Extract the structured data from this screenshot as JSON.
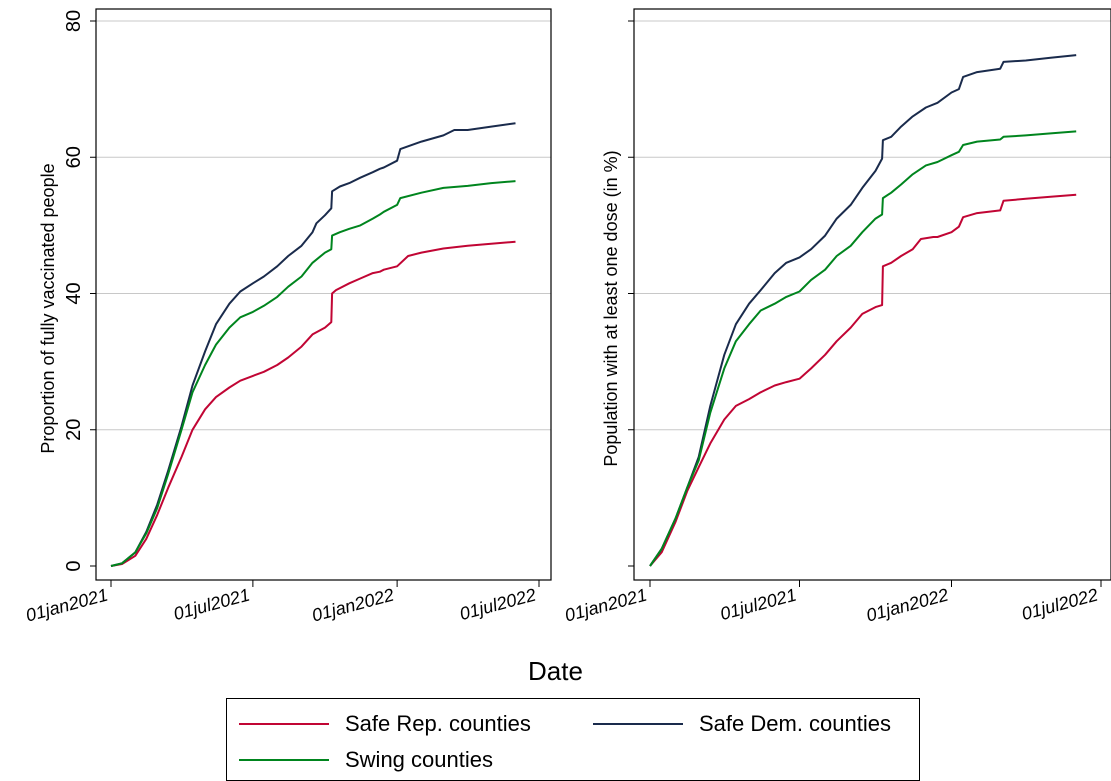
{
  "colors": {
    "safe_rep": "#c10534",
    "safe_dem": "#1a2b4c",
    "swing": "#00851e",
    "grid": "#c8c8c8",
    "axis": "#000000"
  },
  "xlabel": "Date",
  "legend": {
    "placement": "bottom",
    "items": [
      {
        "label": "Safe Rep. counties",
        "series": "safe_rep"
      },
      {
        "label": "Safe Dem. counties",
        "series": "safe_dem"
      },
      {
        "label": "Swing counties",
        "series": "swing"
      }
    ]
  },
  "chart_data": [
    {
      "type": "line",
      "ylabel": "Proportion of fully vaccinated people",
      "xlabel": "Date",
      "xlim": [
        "2021-01-01",
        "2022-07-01"
      ],
      "ylim": [
        0,
        80
      ],
      "x_ticks": [
        "01jan2021",
        "01jul2021",
        "01jan2022",
        "01jul2022"
      ],
      "y_ticks": [
        "0",
        "20",
        "40",
        "60",
        "80"
      ],
      "grid": true,
      "series": [
        {
          "name": "Safe Rep. counties",
          "key": "safe_rep",
          "points": [
            [
              "2021-01-01",
              0
            ],
            [
              "2021-01-15",
              0.3
            ],
            [
              "2021-02-01",
              1.5
            ],
            [
              "2021-02-15",
              4
            ],
            [
              "2021-03-01",
              7.5
            ],
            [
              "2021-03-15",
              11.5
            ],
            [
              "2021-04-01",
              16
            ],
            [
              "2021-04-15",
              20
            ],
            [
              "2021-05-01",
              23
            ],
            [
              "2021-05-15",
              24.8
            ],
            [
              "2021-06-01",
              26.2
            ],
            [
              "2021-06-15",
              27.2
            ],
            [
              "2021-07-01",
              27.9
            ],
            [
              "2021-07-15",
              28.5
            ],
            [
              "2021-08-01",
              29.5
            ],
            [
              "2021-08-15",
              30.6
            ],
            [
              "2021-09-01",
              32.2
            ],
            [
              "2021-09-15",
              34
            ],
            [
              "2021-10-01",
              35
            ],
            [
              "2021-10-09",
              35.8
            ],
            [
              "2021-10-10",
              40
            ],
            [
              "2021-10-15",
              40.5
            ],
            [
              "2021-11-01",
              41.5
            ],
            [
              "2021-11-15",
              42.2
            ],
            [
              "2021-12-01",
              43
            ],
            [
              "2021-12-10",
              43.2
            ],
            [
              "2021-12-15",
              43.5
            ],
            [
              "2022-01-01",
              44
            ],
            [
              "2022-01-15",
              45.5
            ],
            [
              "2022-02-01",
              46
            ],
            [
              "2022-03-01",
              46.6
            ],
            [
              "2022-04-01",
              47
            ],
            [
              "2022-05-01",
              47.3
            ],
            [
              "2022-06-01",
              47.6
            ]
          ]
        },
        {
          "name": "Safe Dem. counties",
          "key": "safe_dem",
          "points": [
            [
              "2021-01-01",
              0
            ],
            [
              "2021-01-15",
              0.4
            ],
            [
              "2021-02-01",
              2
            ],
            [
              "2021-02-15",
              5
            ],
            [
              "2021-03-01",
              9
            ],
            [
              "2021-03-15",
              14
            ],
            [
              "2021-04-01",
              20.5
            ],
            [
              "2021-04-15",
              26.5
            ],
            [
              "2021-05-01",
              31.5
            ],
            [
              "2021-05-15",
              35.5
            ],
            [
              "2021-06-01",
              38.5
            ],
            [
              "2021-06-15",
              40.3
            ],
            [
              "2021-07-01",
              41.5
            ],
            [
              "2021-07-15",
              42.5
            ],
            [
              "2021-08-01",
              44
            ],
            [
              "2021-08-15",
              45.5
            ],
            [
              "2021-09-01",
              47
            ],
            [
              "2021-09-15",
              49
            ],
            [
              "2021-09-20",
              50.3
            ],
            [
              "2021-10-01",
              51.5
            ],
            [
              "2021-10-09",
              52.5
            ],
            [
              "2021-10-10",
              55
            ],
            [
              "2021-10-20",
              55.7
            ],
            [
              "2021-11-01",
              56.2
            ],
            [
              "2021-11-15",
              57
            ],
            [
              "2021-12-01",
              57.8
            ],
            [
              "2021-12-10",
              58.3
            ],
            [
              "2021-12-15",
              58.5
            ],
            [
              "2022-01-01",
              59.5
            ],
            [
              "2022-01-05",
              61.2
            ],
            [
              "2022-02-01",
              62.3
            ],
            [
              "2022-03-01",
              63.2
            ],
            [
              "2022-03-15",
              64
            ],
            [
              "2022-04-01",
              64
            ],
            [
              "2022-05-01",
              64.5
            ],
            [
              "2022-06-01",
              65
            ]
          ]
        },
        {
          "name": "Swing counties",
          "key": "swing",
          "points": [
            [
              "2021-01-01",
              0
            ],
            [
              "2021-01-15",
              0.4
            ],
            [
              "2021-02-01",
              2
            ],
            [
              "2021-02-15",
              4.8
            ],
            [
              "2021-03-01",
              8.5
            ],
            [
              "2021-03-15",
              13.5
            ],
            [
              "2021-04-01",
              20
            ],
            [
              "2021-04-15",
              25.5
            ],
            [
              "2021-05-01",
              29.5
            ],
            [
              "2021-05-15",
              32.5
            ],
            [
              "2021-06-01",
              35
            ],
            [
              "2021-06-15",
              36.5
            ],
            [
              "2021-07-01",
              37.3
            ],
            [
              "2021-07-15",
              38.2
            ],
            [
              "2021-08-01",
              39.5
            ],
            [
              "2021-08-15",
              41
            ],
            [
              "2021-09-01",
              42.5
            ],
            [
              "2021-09-15",
              44.5
            ],
            [
              "2021-10-01",
              46
            ],
            [
              "2021-10-09",
              46.5
            ],
            [
              "2021-10-10",
              48.5
            ],
            [
              "2021-10-20",
              49
            ],
            [
              "2021-11-01",
              49.5
            ],
            [
              "2021-11-15",
              50
            ],
            [
              "2021-12-01",
              51
            ],
            [
              "2021-12-10",
              51.6
            ],
            [
              "2021-12-15",
              52
            ],
            [
              "2022-01-01",
              53
            ],
            [
              "2022-01-05",
              54
            ],
            [
              "2022-02-01",
              54.8
            ],
            [
              "2022-03-01",
              55.5
            ],
            [
              "2022-04-01",
              55.8
            ],
            [
              "2022-05-01",
              56.2
            ],
            [
              "2022-06-01",
              56.5
            ]
          ]
        }
      ]
    },
    {
      "type": "line",
      "ylabel": "Population with at least one dose (in %)",
      "xlabel": "Date",
      "xlim": [
        "2021-01-01",
        "2022-07-01"
      ],
      "ylim": [
        0,
        80
      ],
      "x_ticks": [
        "01jan2021",
        "01jul2021",
        "01jan2022",
        "01jul2022"
      ],
      "y_ticks": [],
      "grid": true,
      "series": [
        {
          "name": "Safe Rep. counties",
          "key": "safe_rep",
          "points": [
            [
              "2021-01-01",
              0
            ],
            [
              "2021-01-15",
              2
            ],
            [
              "2021-02-01",
              6.5
            ],
            [
              "2021-02-15",
              11
            ],
            [
              "2021-03-01",
              14.5
            ],
            [
              "2021-03-15",
              18
            ],
            [
              "2021-04-01",
              21.5
            ],
            [
              "2021-04-15",
              23.5
            ],
            [
              "2021-05-01",
              24.5
            ],
            [
              "2021-05-15",
              25.5
            ],
            [
              "2021-06-01",
              26.5
            ],
            [
              "2021-06-15",
              27
            ],
            [
              "2021-07-01",
              27.5
            ],
            [
              "2021-07-15",
              29
            ],
            [
              "2021-08-01",
              31
            ],
            [
              "2021-08-15",
              33
            ],
            [
              "2021-09-01",
              35
            ],
            [
              "2021-09-15",
              37
            ],
            [
              "2021-10-01",
              38
            ],
            [
              "2021-10-09",
              38.3
            ],
            [
              "2021-10-10",
              44
            ],
            [
              "2021-10-20",
              44.5
            ],
            [
              "2021-11-01",
              45.5
            ],
            [
              "2021-11-15",
              46.5
            ],
            [
              "2021-11-25",
              48
            ],
            [
              "2021-12-10",
              48.3
            ],
            [
              "2021-12-15",
              48.3
            ],
            [
              "2022-01-01",
              49
            ],
            [
              "2022-01-10",
              49.8
            ],
            [
              "2022-01-15",
              51.2
            ],
            [
              "2022-02-01",
              51.8
            ],
            [
              "2022-03-01",
              52.2
            ],
            [
              "2022-03-05",
              53.6
            ],
            [
              "2022-04-01",
              53.9
            ],
            [
              "2022-05-01",
              54.2
            ],
            [
              "2022-06-01",
              54.5
            ]
          ]
        },
        {
          "name": "Safe Dem. counties",
          "key": "safe_dem",
          "points": [
            [
              "2021-01-01",
              0
            ],
            [
              "2021-01-15",
              2.5
            ],
            [
              "2021-02-01",
              7
            ],
            [
              "2021-02-15",
              11.5
            ],
            [
              "2021-03-01",
              16
            ],
            [
              "2021-03-15",
              23.5
            ],
            [
              "2021-04-01",
              31
            ],
            [
              "2021-04-15",
              35.5
            ],
            [
              "2021-05-01",
              38.5
            ],
            [
              "2021-05-15",
              40.5
            ],
            [
              "2021-06-01",
              43
            ],
            [
              "2021-06-15",
              44.5
            ],
            [
              "2021-07-01",
              45.3
            ],
            [
              "2021-07-15",
              46.5
            ],
            [
              "2021-08-01",
              48.5
            ],
            [
              "2021-08-15",
              51
            ],
            [
              "2021-09-01",
              53
            ],
            [
              "2021-09-15",
              55.5
            ],
            [
              "2021-10-01",
              58
            ],
            [
              "2021-10-09",
              59.8
            ],
            [
              "2021-10-10",
              62.5
            ],
            [
              "2021-10-20",
              63
            ],
            [
              "2021-11-01",
              64.5
            ],
            [
              "2021-11-15",
              66
            ],
            [
              "2021-12-01",
              67.3
            ],
            [
              "2021-12-15",
              68
            ],
            [
              "2022-01-01",
              69.5
            ],
            [
              "2022-01-10",
              70
            ],
            [
              "2022-01-15",
              71.8
            ],
            [
              "2022-02-01",
              72.5
            ],
            [
              "2022-03-01",
              73
            ],
            [
              "2022-03-05",
              74
            ],
            [
              "2022-04-01",
              74.2
            ],
            [
              "2022-05-01",
              74.6
            ],
            [
              "2022-06-01",
              75
            ]
          ]
        },
        {
          "name": "Swing counties",
          "key": "swing",
          "points": [
            [
              "2021-01-01",
              0
            ],
            [
              "2021-01-15",
              2.5
            ],
            [
              "2021-02-01",
              7
            ],
            [
              "2021-02-15",
              11.5
            ],
            [
              "2021-03-01",
              15.5
            ],
            [
              "2021-03-15",
              22.5
            ],
            [
              "2021-04-01",
              29
            ],
            [
              "2021-04-15",
              33
            ],
            [
              "2021-05-01",
              35.5
            ],
            [
              "2021-05-15",
              37.5
            ],
            [
              "2021-06-01",
              38.5
            ],
            [
              "2021-06-15",
              39.5
            ],
            [
              "2021-07-01",
              40.3
            ],
            [
              "2021-07-15",
              42
            ],
            [
              "2021-08-01",
              43.5
            ],
            [
              "2021-08-15",
              45.5
            ],
            [
              "2021-09-01",
              47
            ],
            [
              "2021-09-15",
              49
            ],
            [
              "2021-10-01",
              51
            ],
            [
              "2021-10-09",
              51.6
            ],
            [
              "2021-10-10",
              54
            ],
            [
              "2021-10-20",
              54.8
            ],
            [
              "2021-11-01",
              56
            ],
            [
              "2021-11-15",
              57.5
            ],
            [
              "2021-12-01",
              58.8
            ],
            [
              "2021-12-15",
              59.3
            ],
            [
              "2022-01-01",
              60.3
            ],
            [
              "2022-01-10",
              60.8
            ],
            [
              "2022-01-15",
              61.8
            ],
            [
              "2022-02-01",
              62.3
            ],
            [
              "2022-03-01",
              62.6
            ],
            [
              "2022-03-05",
              63
            ],
            [
              "2022-04-01",
              63.2
            ],
            [
              "2022-05-01",
              63.5
            ],
            [
              "2022-06-01",
              63.8
            ]
          ]
        }
      ]
    }
  ]
}
